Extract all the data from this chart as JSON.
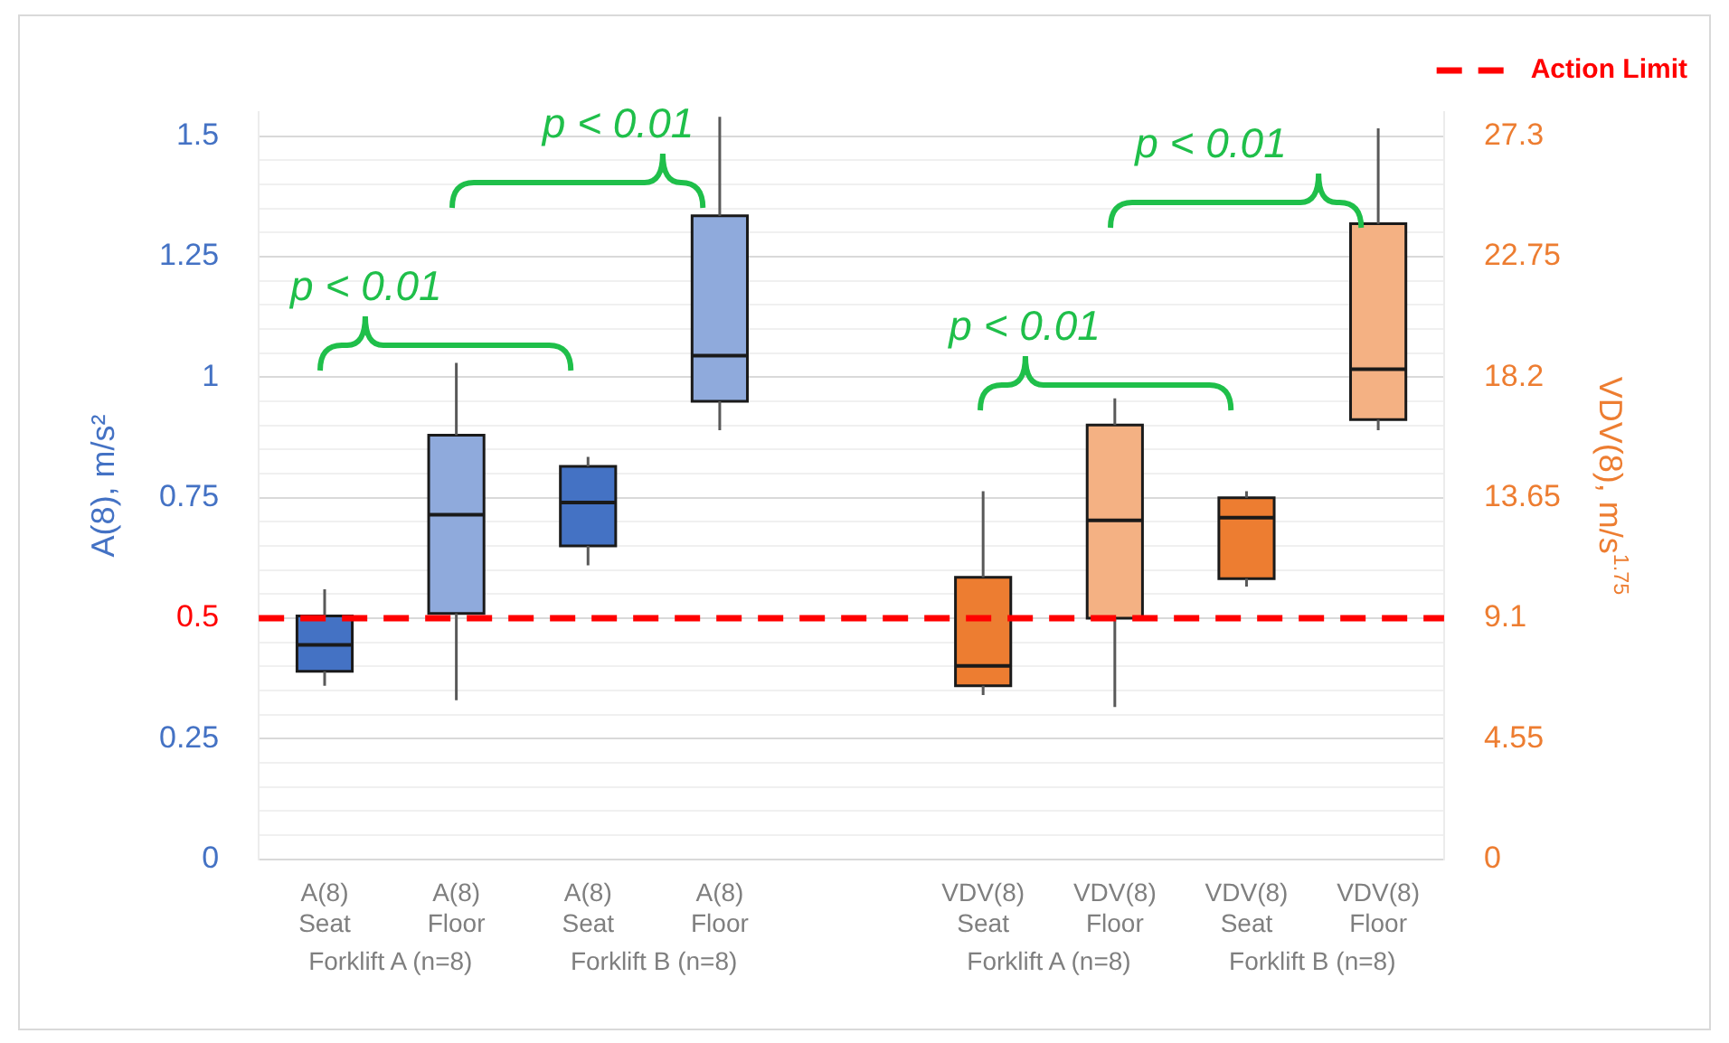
{
  "chart_data": {
    "type": "box",
    "categories": [
      "A(8) Seat",
      "A(8) Floor",
      "A(8) Seat",
      "A(8) Floor",
      null,
      "VDV(8) Seat",
      "VDV(8) Floor",
      "VDV(8) Seat",
      "VDV(8) Floor"
    ],
    "series": [
      {
        "axis": "y",
        "colors": [
          "#4472c4",
          "#8faadc",
          "#4472c4",
          "#8faadc",
          null,
          null,
          null,
          null,
          null
        ],
        "boxes": [
          {
            "low": 0.36,
            "q1": 0.39,
            "median": 0.445,
            "q3": 0.505,
            "high": 0.56
          },
          {
            "low": 0.33,
            "q1": 0.51,
            "median": 0.715,
            "q3": 0.88,
            "high": 1.03
          },
          {
            "low": 0.61,
            "q1": 0.65,
            "median": 0.74,
            "q3": 0.815,
            "high": 0.835
          },
          {
            "low": 0.89,
            "q1": 0.95,
            "median": 1.045,
            "q3": 1.335,
            "high": 1.54
          },
          null,
          null,
          null,
          null,
          null
        ]
      },
      {
        "axis": "y2",
        "colors": [
          null,
          null,
          null,
          null,
          null,
          "#ed7d31",
          "#f4b183",
          "#ed7d31",
          "#f4b183"
        ],
        "boxes": [
          null,
          null,
          null,
          null,
          null,
          {
            "low": 6.2,
            "q1": 6.55,
            "median": 7.3,
            "q3": 10.65,
            "high": 13.9
          },
          {
            "low": 5.75,
            "q1": 9.1,
            "median": 12.8,
            "q3": 16.4,
            "high": 17.4
          },
          {
            "low": 10.3,
            "q1": 10.6,
            "median": 12.9,
            "q3": 13.65,
            "high": 13.9
          },
          {
            "low": 16.2,
            "q1": 16.6,
            "median": 18.5,
            "q3": 24.0,
            "high": 27.6
          }
        ]
      }
    ],
    "ylabel": "A(8), m/s²",
    "y2label": "VDV(8), m/s$^{1.75}$",
    "ylim": [
      0,
      1.55
    ],
    "yticks": [
      0,
      {
        "value": 0.05,
        "label": null
      },
      {
        "value": 0.1,
        "label": null
      },
      {
        "value": 0.15,
        "label": null
      },
      {
        "value": 0.2,
        "label": null
      },
      0.25,
      {
        "value": 0.3,
        "label": null
      },
      {
        "value": 0.35,
        "label": null
      },
      {
        "value": 0.4,
        "label": null
      },
      {
        "value": 0.45,
        "label": null
      },
      0.5,
      {
        "value": 0.55,
        "label": null
      },
      {
        "value": 0.6,
        "label": null
      },
      {
        "value": 0.65,
        "label": null
      },
      {
        "value": 0.7,
        "label": null
      },
      0.75,
      {
        "value": 0.8,
        "label": null
      },
      {
        "value": 0.85,
        "label": null
      },
      {
        "value": 0.9,
        "label": null
      },
      {
        "value": 0.95,
        "label": null
      },
      1,
      {
        "value": 1.05,
        "label": null
      },
      {
        "value": 1.1,
        "label": null
      },
      {
        "value": 1.15,
        "label": null
      },
      {
        "value": 1.2,
        "label": null
      },
      1.25,
      {
        "value": 1.3,
        "label": null
      },
      {
        "value": 1.35,
        "label": null
      },
      {
        "value": 1.4,
        "label": null
      },
      {
        "value": 1.45,
        "label": null
      },
      1.5
    ],
    "y2lim": [
      0,
      28.21
    ],
    "y2ticks": [
      0,
      4.55,
      9.1,
      13.65,
      18.2,
      22.75,
      27.3
    ],
    "ref_lines": [
      {
        "axis": "y",
        "value": 0.5,
        "label": "Action Limit",
        "color": "#ff0000",
        "line_style": "dashed"
      }
    ],
    "annotations": [
      "p < 0.01",
      "p < 0.01",
      "p < 0.01",
      "p < 0.01",
      "Forklift A (n=8)",
      "Forklift B (n=8)",
      "Forklift A (n=8)",
      "Forklift B (n=8)"
    ],
    "grid": "y",
    "legend": "top right"
  }
}
